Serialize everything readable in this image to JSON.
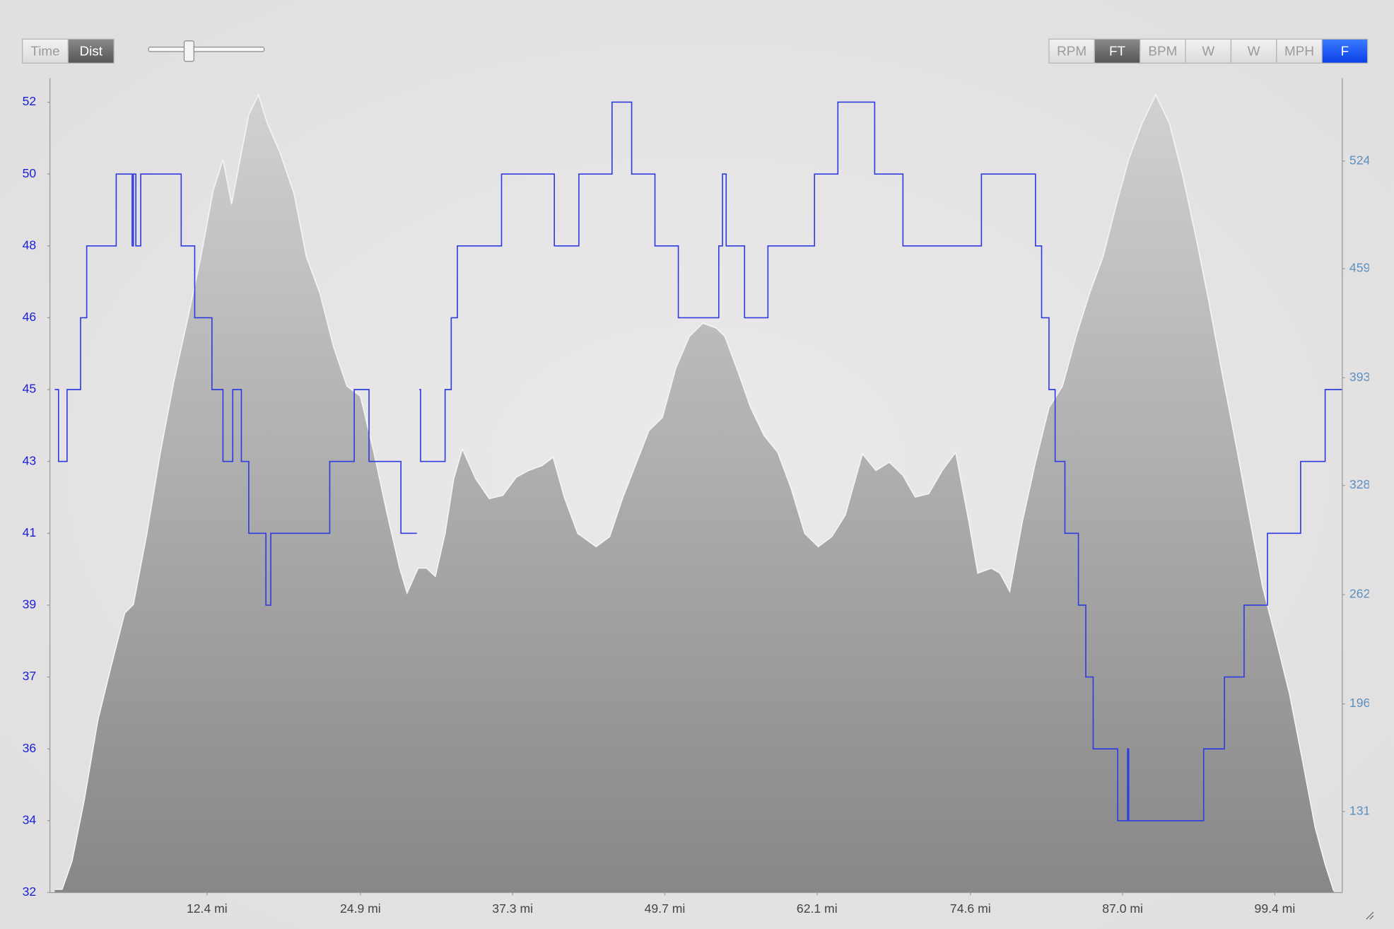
{
  "toolbar": {
    "modes": [
      {
        "label": "Time",
        "state": "off"
      },
      {
        "label": "Dist",
        "state": "on"
      }
    ],
    "units": [
      {
        "label": "RPM",
        "state": "off"
      },
      {
        "label": "FT",
        "state": "on"
      },
      {
        "label": "BPM",
        "state": "off"
      },
      {
        "label": "W",
        "state": "off"
      },
      {
        "label": "W",
        "state": "off"
      },
      {
        "label": "MPH",
        "state": "off"
      },
      {
        "label": "F",
        "state": "active"
      }
    ]
  },
  "chart_data": {
    "type": "combo",
    "xlim": [
      -0.4,
      104.9
    ],
    "xticks": [
      {
        "value": 12.4,
        "label": "12.4 mi"
      },
      {
        "value": 24.9,
        "label": "24.9 mi"
      },
      {
        "value": 37.3,
        "label": "37.3 mi"
      },
      {
        "value": 49.7,
        "label": "49.7 mi"
      },
      {
        "value": 62.1,
        "label": "62.1 mi"
      },
      {
        "value": 74.6,
        "label": "74.6 mi"
      },
      {
        "value": 87.0,
        "label": "87.0 mi"
      },
      {
        "value": 99.4,
        "label": "99.4 mi"
      }
    ],
    "ylim": [
      32,
      52.4
    ],
    "yticks": [
      {
        "value": 32,
        "label": "32"
      },
      {
        "value": 33.8,
        "label": "34"
      },
      {
        "value": 35.6,
        "label": "36"
      },
      {
        "value": 37.4,
        "label": "37"
      },
      {
        "value": 39.2,
        "label": "39"
      },
      {
        "value": 41,
        "label": "41"
      },
      {
        "value": 42.8,
        "label": "43"
      },
      {
        "value": 44.6,
        "label": "45"
      },
      {
        "value": 46.4,
        "label": "46"
      },
      {
        "value": 48.2,
        "label": "48"
      },
      {
        "value": 50,
        "label": "50"
      },
      {
        "value": 51.8,
        "label": "52"
      }
    ],
    "y2lim": [
      82,
      574
    ],
    "y2ticks": [
      131,
      196,
      262,
      328,
      393,
      459,
      524
    ],
    "series": [
      {
        "type": "area",
        "axis": "y2",
        "color": "#9a9a9a",
        "x": [
          0,
          0.6,
          1.4,
          2.4,
          3.5,
          4.6,
          5.7,
          6.4,
          7.5,
          8.6,
          9.7,
          10.8,
          11.9,
          12.9,
          13.7,
          14.4,
          15.1,
          15.8,
          16.6,
          17.3,
          18.4,
          19.5,
          20.5,
          21.6,
          22.7,
          23.8,
          24.9,
          26.0,
          27.1,
          28.1,
          28.7,
          29.6,
          30.3,
          31.0,
          31.8,
          32.5,
          33.2,
          34.3,
          35.4,
          36.5,
          37.6,
          38.6,
          39.7,
          40.6,
          41.5,
          42.6,
          44.1,
          45.2,
          46.3,
          47.3,
          48.4,
          49.5,
          50.6,
          51.7,
          52.8,
          53.9,
          54.6,
          55.7,
          56.7,
          57.8,
          58.9,
          60.0,
          61.1,
          62.2,
          63.3,
          64.4,
          65.8,
          66.9,
          68.0,
          69.1,
          70.1,
          71.2,
          72.3,
          73.4,
          74.5,
          75.2,
          76.3,
          77.0,
          77.8,
          78.8,
          79.9,
          81.0,
          82.1,
          83.2,
          84.3,
          85.4,
          86.5,
          87.5,
          88.6,
          89.7,
          90.8,
          91.9,
          93.0,
          94.0,
          95.1,
          96.2,
          97.3,
          98.4,
          99.5,
          100.6,
          101.6,
          102.7,
          103.5,
          104.2
        ],
        "values": [
          84,
          84,
          101,
          138,
          186,
          219,
          251,
          256,
          299,
          348,
          391,
          428,
          466,
          506,
          525,
          498,
          525,
          552,
          564,
          547,
          528,
          504,
          466,
          444,
          412,
          388,
          382,
          348,
          310,
          278,
          263,
          278,
          278,
          273,
          299,
          332,
          350,
          332,
          320,
          322,
          333,
          337,
          340,
          345,
          321,
          299,
          291,
          297,
          321,
          340,
          361,
          369,
          399,
          418,
          426,
          423,
          418,
          396,
          375,
          358,
          348,
          326,
          299,
          291,
          297,
          310,
          347,
          337,
          342,
          334,
          321,
          323,
          337,
          348,
          305,
          275,
          278,
          275,
          264,
          305,
          342,
          375,
          388,
          418,
          444,
          466,
          498,
          525,
          547,
          564,
          547,
          515,
          477,
          440,
          396,
          354,
          310,
          267,
          235,
          202,
          164,
          121,
          99,
          83
        ]
      },
      {
        "type": "step",
        "color": "#2f3ce0",
        "x": [
          0,
          0.3,
          1.0,
          2.1,
          2.6,
          5.0,
          6.3,
          6.4,
          6.6,
          7.0,
          10.3,
          11.4,
          12.8,
          13.7,
          14.5,
          15.2,
          15.8,
          17.2,
          17.6,
          22.4,
          24.4,
          25.6,
          28.2,
          29.5,
          29.6,
          29.7,
          29.8,
          31.8,
          32.3,
          32.8,
          36.4,
          40.7,
          42.7,
          45.4,
          47.0,
          48.9,
          50.8,
          54.1,
          54.4,
          54.7,
          56.2,
          58.1,
          61.9,
          63.8,
          66.8,
          69.1,
          75.5,
          79.9,
          80.4,
          81.0,
          81.5,
          82.3,
          83.4,
          84.0,
          84.6,
          86.6,
          87.4,
          87.5,
          93.6,
          95.3,
          96.9,
          98.8,
          101.5,
          103.5,
          104.9
        ],
        "values": [
          44.6,
          42.8,
          44.6,
          46.4,
          48.2,
          50,
          48.2,
          50,
          48.2,
          50,
          48.2,
          46.4,
          44.6,
          42.8,
          44.6,
          42.8,
          41,
          39.2,
          41,
          42.8,
          44.6,
          42.8,
          41,
          41,
          null,
          44.6,
          42.8,
          44.6,
          46.4,
          48.2,
          50,
          48.2,
          50,
          51.8,
          50,
          48.2,
          46.4,
          48.2,
          50,
          48.2,
          46.4,
          48.2,
          50,
          51.8,
          50,
          48.2,
          50,
          48.2,
          46.4,
          44.6,
          42.8,
          41,
          39.2,
          37.4,
          35.6,
          33.8,
          35.6,
          33.8,
          35.6,
          37.4,
          39.2,
          41,
          42.8,
          44.6,
          44.6
        ]
      }
    ]
  }
}
